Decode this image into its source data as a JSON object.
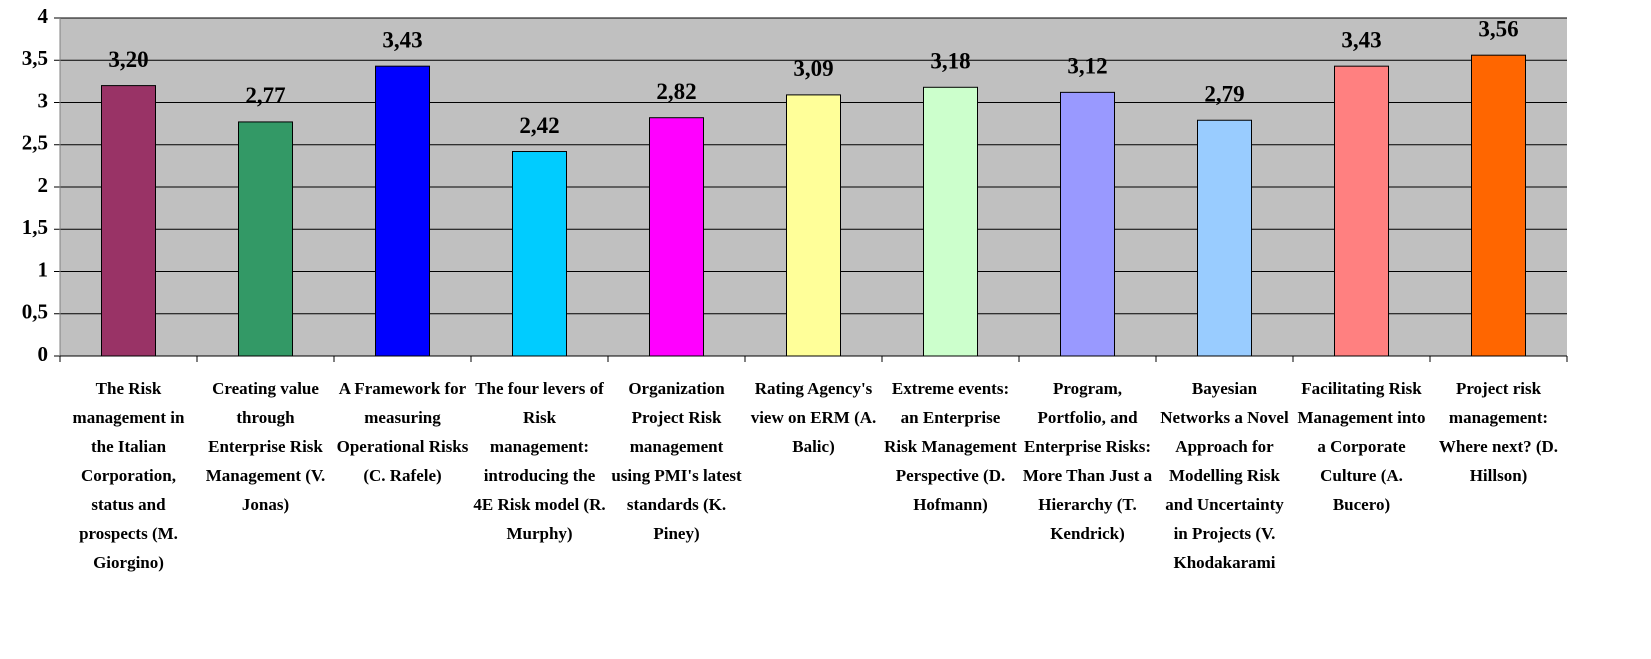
{
  "chart_data": {
    "type": "bar",
    "categories": [
      "The Risk management in the Italian Corporation, status and prospects (M. Giorgino)",
      "Creating value through Enterprise Risk Management (V. Jonas)",
      "A Framework for measuring Operational Risks (C. Rafele)",
      "The four levers of Risk management: introducing the 4E Risk model (R. Murphy)",
      "Organization Project Risk management using PMI's latest standards (K. Piney)",
      "Rating Agency's view on ERM (A. Balic)",
      "Extreme events: an Enterprise Risk Management Perspective (D. Hofmann)",
      "Program, Portfolio, and Enterprise Risks: More Than Just a Hierarchy (T. Kendrick)",
      "Bayesian Networks a Novel Approach for Modelling Risk and Uncertainty in Projects (V. Khodakarami",
      "Facilitating Risk Management into a Corporate Culture (A. Bucero)",
      "Project risk management: Where next? (D. Hillson)"
    ],
    "values": [
      3.2,
      2.77,
      3.43,
      2.42,
      2.82,
      3.09,
      3.18,
      3.12,
      2.79,
      3.43,
      3.56
    ],
    "value_labels": [
      "3,20",
      "2,77",
      "3,43",
      "2,42",
      "2,82",
      "3,09",
      "3,18",
      "3,12",
      "2,79",
      "3,43",
      "3,56"
    ],
    "colors": [
      "#993366",
      "#339966",
      "#0000ff",
      "#00ccff",
      "#ff00ff",
      "#ffff99",
      "#ccffcc",
      "#9999ff",
      "#99ccff",
      "#ff8080",
      "#ff6600"
    ],
    "ylim": [
      0,
      4
    ],
    "yticks": [
      0,
      {
        "value": 0.5,
        "label": "0,5"
      },
      1,
      {
        "value": 1.5,
        "label": "1,5"
      },
      2,
      {
        "value": 2.5,
        "label": "2,5"
      },
      3,
      {
        "value": 3.5,
        "label": "3,5"
      },
      4
    ],
    "grid": true
  }
}
